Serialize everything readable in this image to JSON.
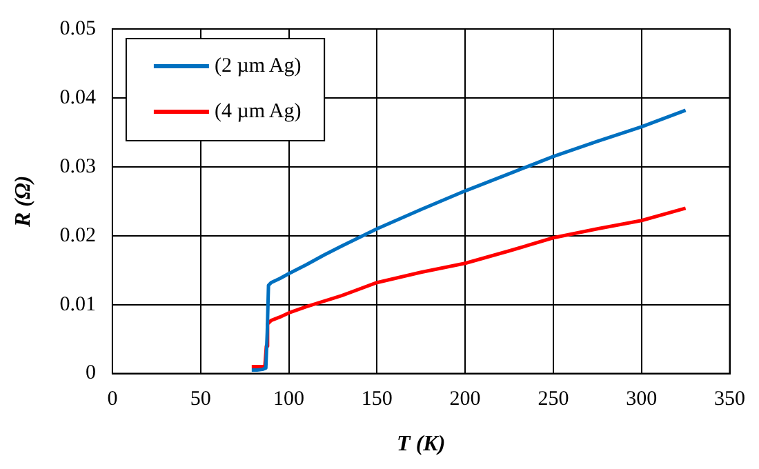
{
  "chart_data": {
    "type": "line",
    "xlabel": "T (K)",
    "ylabel": "R (Ω)",
    "xlim": [
      0,
      350
    ],
    "xticks": [
      0,
      50,
      100,
      150,
      200,
      250,
      300,
      350
    ],
    "ylim": [
      0,
      0.05
    ],
    "yticks": [
      0,
      0.01,
      0.02,
      0.03,
      0.04,
      0.05
    ],
    "grid": true,
    "legend": "top left",
    "series": [
      {
        "name": "(2 µm Ag)",
        "color": "#0070c0",
        "x": [
          79,
          82,
          85,
          87,
          87.8,
          88.5,
          90,
          95,
          100,
          110,
          120,
          130,
          150,
          175,
          200,
          225,
          250,
          275,
          300,
          325
        ],
        "values": [
          0.0005,
          0.0005,
          0.0006,
          0.0008,
          0.006,
          0.0128,
          0.0132,
          0.0138,
          0.0145,
          0.0158,
          0.0172,
          0.0185,
          0.021,
          0.0238,
          0.0265,
          0.029,
          0.0315,
          0.0337,
          0.0358,
          0.0382
        ]
      },
      {
        "name": "(4 µm Ag)",
        "color": "#ff0000",
        "x": [
          79,
          82,
          85,
          86.5,
          87.3,
          88,
          90,
          95,
          100,
          110,
          120,
          130,
          150,
          175,
          200,
          225,
          250,
          275,
          300,
          325
        ],
        "values": [
          0.001,
          0.001,
          0.001,
          0.0012,
          0.004,
          0.0072,
          0.0077,
          0.0082,
          0.0088,
          0.0097,
          0.0105,
          0.0113,
          0.0132,
          0.0147,
          0.016,
          0.0178,
          0.0197,
          0.021,
          0.0222,
          0.024
        ]
      }
    ]
  }
}
